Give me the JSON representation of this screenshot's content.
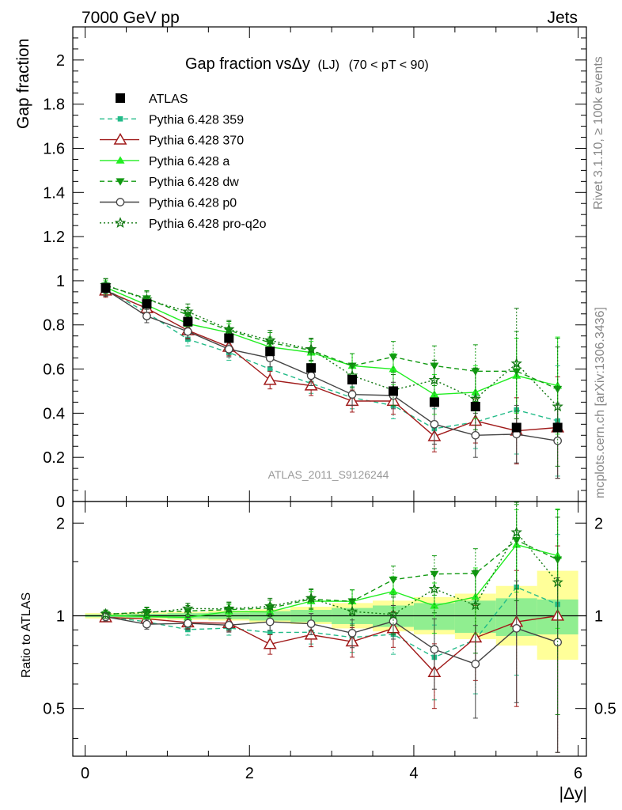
{
  "header": {
    "energy_label": "7000 GeV pp",
    "process_label": "Jets"
  },
  "side_labels": {
    "rivet": "Rivet 3.1.10, ≥ 100k events",
    "mcplots": "mcplots.cern.ch [arXiv:1306.3436]"
  },
  "chart_data": {
    "type": "line",
    "title": "Gap fraction vsΔy",
    "title_tag": "(LJ)",
    "title_range": "(70 < pT <  90)",
    "analysis_label": "ATLAS_2011_S9126244",
    "xlabel": "|Δy|",
    "ylabel": "Gap fraction",
    "ratio_ylabel": "Ratio to ATLAS",
    "xlim": [
      -0.15,
      6.1
    ],
    "ylim": [
      0,
      2.15
    ],
    "ratio_ylim": [
      0.35,
      2.35
    ],
    "ratio_log": true,
    "x_ticks": [
      "0",
      "2",
      "4",
      "6"
    ],
    "y_ticks": [
      "0",
      "0.2",
      "0.4",
      "0.6",
      "0.8",
      "1",
      "1.2",
      "1.4",
      "1.6",
      "1.8",
      "2"
    ],
    "ratio_ticks": [
      "0.5",
      "1",
      "2"
    ],
    "bins": [
      [
        0,
        0.5
      ],
      [
        0.5,
        1
      ],
      [
        1,
        1.5
      ],
      [
        1.5,
        2
      ],
      [
        2,
        2.5
      ],
      [
        2.5,
        3
      ],
      [
        3,
        3.5
      ],
      [
        3.5,
        4
      ],
      [
        4,
        4.5
      ],
      [
        4.5,
        5
      ],
      [
        5,
        5.5
      ],
      [
        5.5,
        6
      ]
    ],
    "x": [
      0.25,
      0.75,
      1.25,
      1.75,
      2.25,
      2.75,
      3.25,
      3.75,
      4.25,
      4.75,
      5.25,
      5.75
    ],
    "data": {
      "name": "ATLAS",
      "color": "#000000",
      "values": [
        0.967,
        0.895,
        0.815,
        0.74,
        0.68,
        0.605,
        0.552,
        0.5,
        0.45,
        0.43,
        0.335,
        0.335
      ],
      "band_inner": [
        [
          0.99,
          1.01
        ],
        [
          0.985,
          1.015
        ],
        [
          0.98,
          1.02
        ],
        [
          0.975,
          1.025
        ],
        [
          0.965,
          1.035
        ],
        [
          0.955,
          1.045
        ],
        [
          0.94,
          1.06
        ],
        [
          0.92,
          1.08
        ],
        [
          0.9,
          1.1
        ],
        [
          0.88,
          1.12
        ],
        [
          0.86,
          1.14
        ],
        [
          0.87,
          1.13
        ]
      ],
      "band_outer": [
        [
          0.98,
          1.02
        ],
        [
          0.975,
          1.025
        ],
        [
          0.97,
          1.03
        ],
        [
          0.965,
          1.04
        ],
        [
          0.95,
          1.05
        ],
        [
          0.94,
          1.07
        ],
        [
          0.91,
          1.1
        ],
        [
          0.89,
          1.12
        ],
        [
          0.87,
          1.15
        ],
        [
          0.84,
          1.18
        ],
        [
          0.8,
          1.25
        ],
        [
          0.72,
          1.4
        ]
      ]
    },
    "inner_band_color": "#90ee90",
    "outer_band_color": "#ffff99",
    "series": [
      {
        "name": "Pythia 6.428 359",
        "color": "#22bb88",
        "dash": "dashed",
        "marker": "square-small",
        "values": [
          0.962,
          0.855,
          0.735,
          0.675,
          0.6,
          0.535,
          0.47,
          0.435,
          0.33,
          0.36,
          0.415,
          0.365
        ],
        "errors": [
          0.03,
          0.03,
          0.03,
          0.035,
          0.04,
          0.045,
          0.05,
          0.06,
          0.09,
          0.12,
          0.2,
          0.25
        ]
      },
      {
        "name": "Pythia 6.428 370",
        "color": "#a01a1a",
        "dash": "solid",
        "marker": "triangle-open",
        "values": [
          0.955,
          0.875,
          0.775,
          0.7,
          0.55,
          0.525,
          0.455,
          0.455,
          0.295,
          0.365,
          0.32,
          0.335
        ],
        "errors": [
          0.03,
          0.035,
          0.035,
          0.04,
          0.04,
          0.045,
          0.05,
          0.06,
          0.07,
          0.1,
          0.15,
          0.23
        ]
      },
      {
        "name": "Pythia 6.428 a",
        "color": "#22ee22",
        "dash": "solid",
        "marker": "triangle-up",
        "values": [
          0.97,
          0.89,
          0.805,
          0.765,
          0.7,
          0.675,
          0.615,
          0.6,
          0.485,
          0.495,
          0.57,
          0.525
        ],
        "errors": [
          0.03,
          0.035,
          0.035,
          0.04,
          0.045,
          0.05,
          0.055,
          0.07,
          0.09,
          0.12,
          0.17,
          0.22
        ]
      },
      {
        "name": "Pythia 6.428 dw",
        "color": "#119911",
        "dash": "dashed",
        "marker": "triangle-down",
        "values": [
          0.978,
          0.92,
          0.845,
          0.775,
          0.72,
          0.685,
          0.615,
          0.655,
          0.615,
          0.59,
          0.59,
          0.51
        ],
        "errors": [
          0.03,
          0.035,
          0.035,
          0.04,
          0.045,
          0.05,
          0.055,
          0.07,
          0.09,
          0.12,
          0.18,
          0.23
        ]
      },
      {
        "name": "Pythia 6.428 p0",
        "color": "#444444",
        "dash": "solid",
        "marker": "circle-open",
        "values": [
          0.96,
          0.84,
          0.77,
          0.69,
          0.65,
          0.57,
          0.485,
          0.48,
          0.35,
          0.3,
          0.305,
          0.275
        ],
        "errors": [
          0.03,
          0.03,
          0.035,
          0.035,
          0.04,
          0.045,
          0.05,
          0.06,
          0.09,
          0.1,
          0.13,
          0.17
        ]
      },
      {
        "name": "Pythia 6.428 pro-q2o",
        "color": "#117711",
        "dash": "dotted",
        "marker": "star",
        "values": [
          0.98,
          0.915,
          0.86,
          0.78,
          0.73,
          0.69,
          0.57,
          0.505,
          0.55,
          0.465,
          0.625,
          0.43
        ],
        "errors": [
          0.03,
          0.035,
          0.035,
          0.04,
          0.045,
          0.05,
          0.055,
          0.07,
          0.09,
          0.14,
          0.25,
          0.27
        ]
      }
    ]
  }
}
